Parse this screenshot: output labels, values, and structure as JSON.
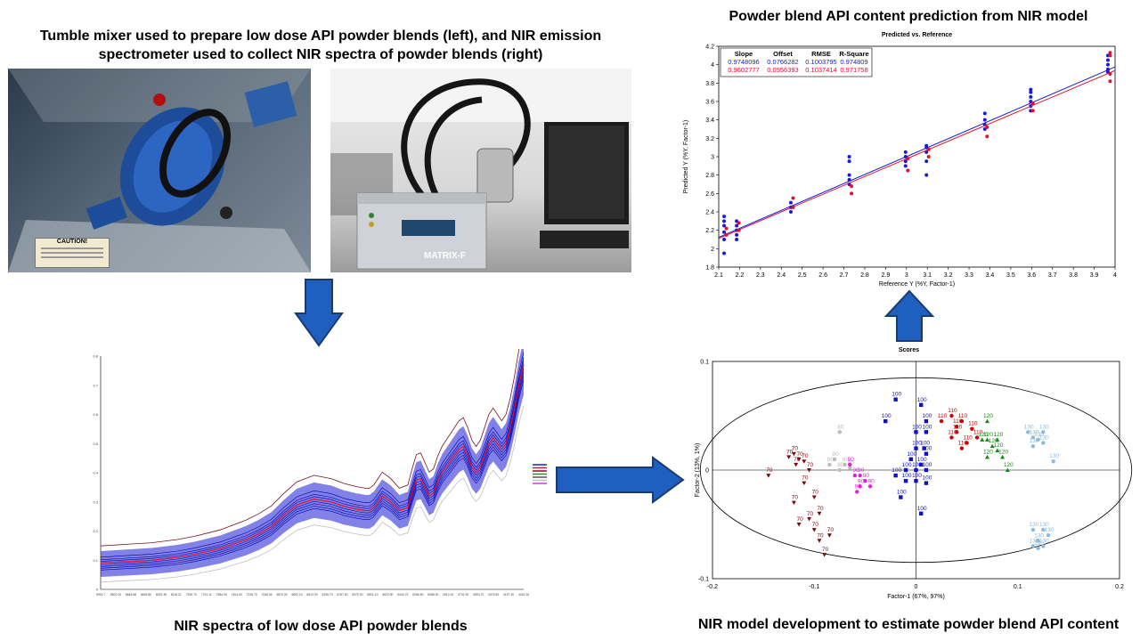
{
  "titles": {
    "mixer": "Tumble mixer used to prepare low dose API powder blends (left), and NIR emission spectrometer used to collect NIR spectra of powder blends (right)",
    "prediction": "Powder blend API content prediction from NIR model",
    "spectra": "NIR spectra of low dose API powder blends",
    "model": "NIR model development to estimate powder blend API content"
  },
  "photos": {
    "caution_label": "CAUTION!",
    "instrument_label": "MATRIX-F"
  },
  "colors": {
    "arrow_fill": "#1f5fbf",
    "arrow_stroke": "#1b3b6f",
    "blue_series": "#1a1ad6",
    "red_series": "#e01030"
  },
  "chart_data": [
    {
      "type": "scatter",
      "title": "Predicted vs. Reference",
      "xlabel": "Reference Y (%Y, Factor-1)",
      "ylabel": "Predicted Y (%Y, Factor-1)",
      "xlim": [
        2.1,
        4.0
      ],
      "ylim": [
        1.8,
        4.2
      ],
      "x_ticks": [
        "2.1",
        "2.2",
        "2.3",
        "2.4",
        "2.5",
        "2.6",
        "2.7",
        "2.8",
        "2.9",
        "3",
        "3.1",
        "3.2",
        "3.3",
        "3.4",
        "3.5",
        "3.6",
        "3.7",
        "3.8",
        "3.9",
        "4"
      ],
      "y_ticks": [
        "1.8",
        "2",
        "2.2",
        "2.4",
        "2.6",
        "2.8",
        "3",
        "3.2",
        "3.4",
        "3.6",
        "3.8",
        "4",
        "4.2"
      ],
      "stats_table": {
        "headers": [
          "Slope",
          "Offset",
          "RMSE",
          "R-Square"
        ],
        "rows": [
          [
            "0.9748096",
            "0.0766282",
            "0.1003795",
            "0.974809"
          ],
          [
            "0.9602777",
            "0.0956393",
            "0.1037414",
            "0.971758"
          ]
        ]
      },
      "reference_levels": [
        2.13,
        2.19,
        2.45,
        2.73,
        3.0,
        3.1,
        3.38,
        3.6,
        3.97
      ],
      "series": [
        {
          "color": "#1a1ad6",
          "slope": 0.9748096,
          "offset": 0.0766282,
          "points": [
            [
              2.13,
              1.95
            ],
            [
              2.13,
              2.1
            ],
            [
              2.13,
              2.18
            ],
            [
              2.13,
              2.25
            ],
            [
              2.13,
              2.3
            ],
            [
              2.13,
              2.35
            ],
            [
              2.19,
              2.1
            ],
            [
              2.19,
              2.15
            ],
            [
              2.19,
              2.2
            ],
            [
              2.19,
              2.25
            ],
            [
              2.19,
              2.3
            ],
            [
              2.45,
              2.4
            ],
            [
              2.45,
              2.45
            ],
            [
              2.45,
              2.5
            ],
            [
              2.73,
              2.7
            ],
            [
              2.73,
              2.75
            ],
            [
              2.73,
              2.8
            ],
            [
              2.73,
              2.95
            ],
            [
              2.73,
              3.0
            ],
            [
              3.0,
              2.9
            ],
            [
              3.0,
              2.95
            ],
            [
              3.0,
              3.0
            ],
            [
              3.0,
              3.05
            ],
            [
              3.1,
              2.8
            ],
            [
              3.1,
              2.95
            ],
            [
              3.1,
              3.05
            ],
            [
              3.1,
              3.1
            ],
            [
              3.1,
              3.12
            ],
            [
              3.38,
              3.3
            ],
            [
              3.38,
              3.35
            ],
            [
              3.38,
              3.4
            ],
            [
              3.38,
              3.47
            ],
            [
              3.6,
              3.5
            ],
            [
              3.6,
              3.55
            ],
            [
              3.6,
              3.6
            ],
            [
              3.6,
              3.65
            ],
            [
              3.6,
              3.7
            ],
            [
              3.6,
              3.73
            ],
            [
              3.97,
              3.92
            ],
            [
              3.97,
              3.95
            ],
            [
              3.97,
              4.0
            ],
            [
              3.97,
              4.05
            ],
            [
              3.97,
              4.1
            ]
          ]
        },
        {
          "color": "#e01030",
          "slope": 0.9602777,
          "offset": 0.0956393,
          "points": [
            [
              2.13,
              2.15
            ],
            [
              2.13,
              2.22
            ],
            [
              2.19,
              2.2
            ],
            [
              2.19,
              2.28
            ],
            [
              2.45,
              2.45
            ],
            [
              2.45,
              2.55
            ],
            [
              2.73,
              2.6
            ],
            [
              2.73,
              2.68
            ],
            [
              3.0,
              2.85
            ],
            [
              3.0,
              2.98
            ],
            [
              3.1,
              3.0
            ],
            [
              3.1,
              3.08
            ],
            [
              3.38,
              3.22
            ],
            [
              3.38,
              3.32
            ],
            [
              3.6,
              3.5
            ],
            [
              3.6,
              3.58
            ],
            [
              3.97,
              3.82
            ],
            [
              3.97,
              3.9
            ],
            [
              3.97,
              4.1
            ],
            [
              3.97,
              4.13
            ]
          ]
        }
      ]
    },
    {
      "type": "line",
      "title": "",
      "xlabel": "",
      "ylabel": "",
      "xlim": [
        9000.7,
        4042.26
      ],
      "ylim": [
        0,
        0.8
      ],
      "y_ticks": [
        "0",
        "0.1",
        "0.2",
        "0.3",
        "0.4",
        "0.5",
        "0.6",
        "0.7",
        "0.8"
      ],
      "x_ticks": [
        "9000.7",
        "8822.00",
        "8648.58",
        "8469.85",
        "8292.38",
        "8116.21",
        "7935.70",
        "7761.11",
        "7584.00",
        "7404.00",
        "7226.70",
        "7048.50",
        "6870.30",
        "6692.10",
        "6513.90",
        "6335.70",
        "6157.50",
        "5979.30",
        "5801.10",
        "5622.90",
        "5444.70",
        "5266.50",
        "5088.30",
        "4910.10",
        "4731.90",
        "4553.70",
        "4375.50",
        "4197.30",
        "4042.26"
      ],
      "x": [
        9000,
        8700,
        8400,
        8100,
        7900,
        7750,
        7600,
        7450,
        7300,
        7150,
        7000,
        6850,
        6700,
        6500,
        6300,
        6150,
        6000,
        5900,
        5850,
        5800,
        5750,
        5700,
        5600,
        5500,
        5400,
        5350,
        5300,
        5250,
        5200,
        5150,
        5100,
        5050,
        5000,
        4950,
        4900,
        4850,
        4800,
        4750,
        4700,
        4650,
        4600,
        4550,
        4500,
        4450,
        4400,
        4350,
        4300,
        4250,
        4200,
        4150,
        4100,
        4042
      ],
      "base_curve": [
        0.09,
        0.095,
        0.1,
        0.11,
        0.12,
        0.13,
        0.14,
        0.155,
        0.17,
        0.19,
        0.215,
        0.255,
        0.29,
        0.31,
        0.3,
        0.285,
        0.275,
        0.27,
        0.27,
        0.28,
        0.3,
        0.32,
        0.3,
        0.27,
        0.28,
        0.33,
        0.375,
        0.38,
        0.35,
        0.32,
        0.33,
        0.37,
        0.4,
        0.42,
        0.44,
        0.46,
        0.48,
        0.49,
        0.46,
        0.42,
        0.4,
        0.42,
        0.46,
        0.5,
        0.52,
        0.5,
        0.48,
        0.5,
        0.55,
        0.62,
        0.7,
        0.77
      ],
      "band_offsets": [
        -0.04,
        -0.03,
        -0.02,
        -0.01,
        0,
        0.01,
        0.02,
        0.035
      ],
      "series": [
        {
          "name": "",
          "color": "#1a1ad6"
        },
        {
          "name": "",
          "color": "#e01030"
        },
        {
          "name": "",
          "color": "#7a1020"
        },
        {
          "name": "",
          "color": "#2e8b2e"
        },
        {
          "name": "",
          "color": "#555555"
        },
        {
          "name": "",
          "color": "#c0c0c0"
        },
        {
          "name": "",
          "color": "#e030e0"
        }
      ]
    },
    {
      "type": "scatter",
      "title": "Scores",
      "xlabel": "Factor-1 (67%, 97%)",
      "ylabel": "Factor-2 (13%, 1%)",
      "xlim": [
        -0.2,
        0.2
      ],
      "ylim": [
        -0.1,
        0.1
      ],
      "x_ticks": [
        "-0.2",
        "-0.1",
        "0",
        "0.1",
        "0.2"
      ],
      "y_ticks": [
        "-0.1",
        "0",
        "0.1"
      ],
      "groups": [
        {
          "label": "70",
          "color": "#7a0a14",
          "marker": "triangle-down",
          "points": [
            [
              -0.145,
              -0.005
            ],
            [
              -0.125,
              0.012
            ],
            [
              -0.12,
              0.015
            ],
            [
              -0.115,
              0.01
            ],
            [
              -0.11,
              0.008
            ],
            [
              -0.118,
              0.005
            ],
            [
              -0.105,
              0.0
            ],
            [
              -0.11,
              -0.012
            ],
            [
              -0.1,
              -0.025
            ],
            [
              -0.12,
              -0.03
            ],
            [
              -0.105,
              -0.045
            ],
            [
              -0.095,
              -0.04
            ],
            [
              -0.115,
              -0.05
            ],
            [
              -0.1,
              -0.055
            ],
            [
              -0.095,
              -0.065
            ],
            [
              -0.09,
              -0.078
            ],
            [
              -0.085,
              -0.06
            ]
          ]
        },
        {
          "label": "80",
          "color": "#bbbbbb",
          "marker": "circle",
          "points": [
            [
              -0.075,
              0.035
            ],
            [
              -0.08,
              0.01
            ],
            [
              -0.085,
              0.005
            ],
            [
              -0.07,
              0.005
            ],
            [
              -0.075,
              0.0
            ],
            [
              -0.065,
              0.002
            ]
          ]
        },
        {
          "label": "90",
          "color": "#dd22dd",
          "marker": "circle",
          "points": [
            [
              -0.065,
              0.005
            ],
            [
              -0.06,
              -0.005
            ],
            [
              -0.055,
              -0.005
            ],
            [
              -0.05,
              -0.01
            ],
            [
              -0.055,
              -0.015
            ],
            [
              -0.045,
              -0.015
            ],
            [
              -0.058,
              -0.02
            ]
          ]
        },
        {
          "label": "100",
          "color": "#1010c8",
          "marker": "square",
          "points": [
            [
              -0.02,
              0.065
            ],
            [
              -0.03,
              0.045
            ],
            [
              0.005,
              0.06
            ],
            [
              0.01,
              0.045
            ],
            [
              0.0,
              0.035
            ],
            [
              0.01,
              0.035
            ],
            [
              0.0,
              0.02
            ],
            [
              0.01,
              0.015
            ],
            [
              -0.005,
              0.01
            ],
            [
              0.005,
              0.005
            ],
            [
              -0.01,
              0.0
            ],
            [
              0.0,
              0.0
            ],
            [
              0.01,
              0.0
            ],
            [
              -0.02,
              -0.005
            ],
            [
              -0.01,
              -0.01
            ],
            [
              0.0,
              -0.01
            ],
            [
              0.01,
              -0.012
            ],
            [
              -0.015,
              -0.025
            ],
            [
              0.005,
              -0.04
            ],
            [
              0.008,
              0.02
            ]
          ]
        },
        {
          "label": "110",
          "color": "#cc0000",
          "marker": "circle",
          "points": [
            [
              0.025,
              0.045
            ],
            [
              0.035,
              0.05
            ],
            [
              0.04,
              0.04
            ],
            [
              0.045,
              0.045
            ],
            [
              0.035,
              0.03
            ],
            [
              0.04,
              0.035
            ],
            [
              0.055,
              0.038
            ],
            [
              0.06,
              0.03
            ],
            [
              0.05,
              0.025
            ],
            [
              0.045,
              0.02
            ]
          ]
        },
        {
          "label": "120",
          "color": "#118811",
          "marker": "triangle-up",
          "points": [
            [
              0.07,
              0.045
            ],
            [
              0.065,
              0.028
            ],
            [
              0.07,
              0.028
            ],
            [
              0.08,
              0.028
            ],
            [
              0.075,
              0.022
            ],
            [
              0.08,
              0.018
            ],
            [
              0.07,
              0.012
            ],
            [
              0.085,
              0.012
            ],
            [
              0.09,
              0.0
            ]
          ]
        },
        {
          "label": "130",
          "color": "#88bbdd",
          "marker": "circle",
          "points": [
            [
              0.11,
              0.035
            ],
            [
              0.125,
              0.035
            ],
            [
              0.115,
              0.03
            ],
            [
              0.12,
              0.028
            ],
            [
              0.115,
              0.022
            ],
            [
              0.125,
              0.025
            ],
            [
              0.135,
              0.008
            ],
            [
              0.115,
              -0.055
            ],
            [
              0.125,
              -0.055
            ],
            [
              0.13,
              -0.06
            ],
            [
              0.12,
              -0.065
            ],
            [
              0.115,
              -0.07
            ],
            [
              0.12,
              -0.072
            ],
            [
              0.125,
              -0.07
            ]
          ]
        }
      ]
    }
  ]
}
